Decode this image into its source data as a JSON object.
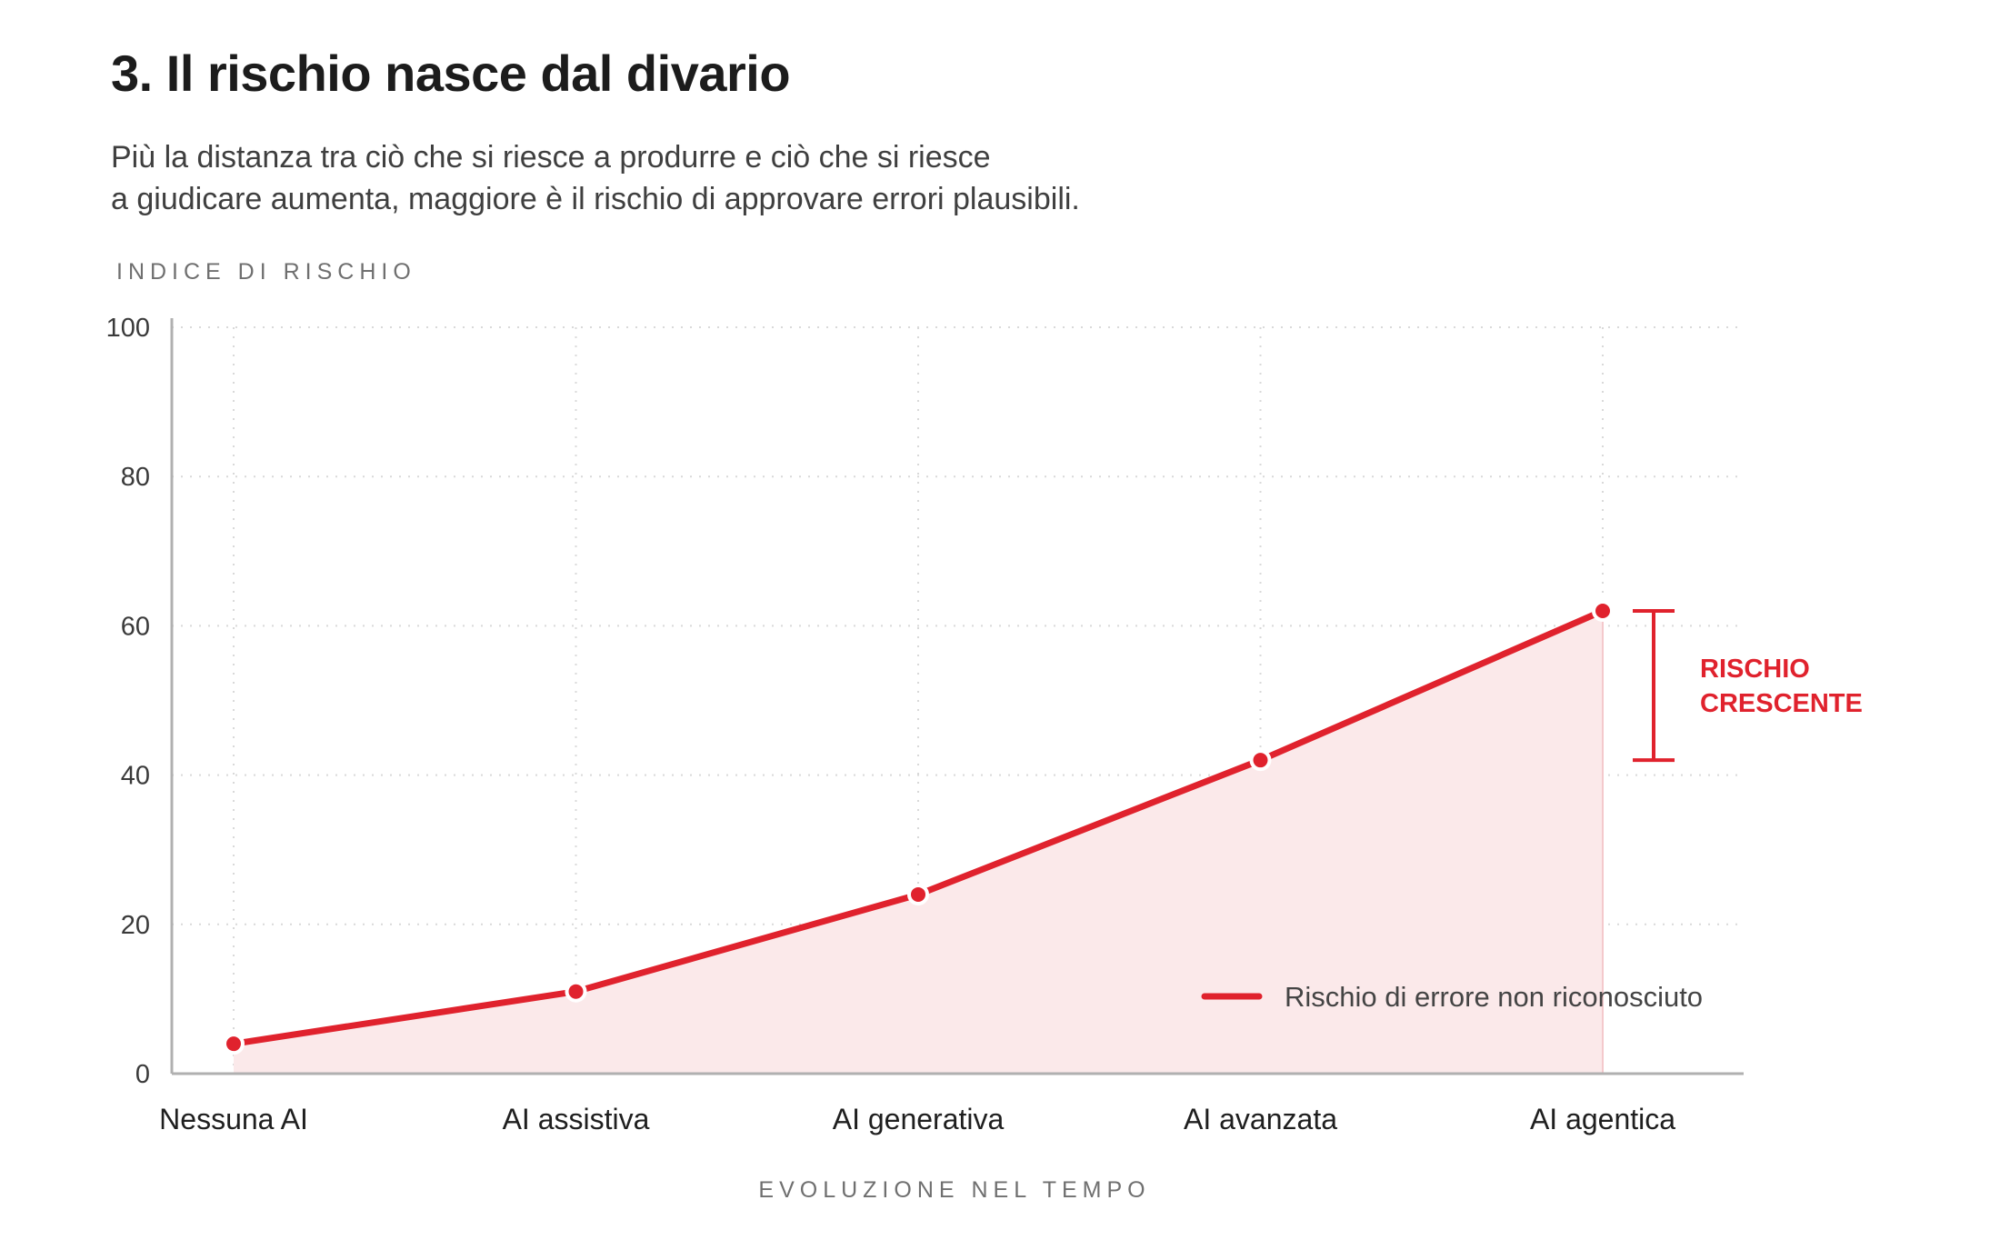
{
  "header": {
    "title": "3. Il rischio nasce dal divario",
    "subtitle_line1": "Più la distanza tra ciò che si riesce a produrre e ciò che si riesce",
    "subtitle_line2": "a giudicare aumenta, maggiore è il rischio di approvare errori plausibili."
  },
  "chart_data": {
    "type": "area",
    "ylabel": "INDICE DI RISCHIO",
    "xlabel": "EVOLUZIONE NEL TEMPO",
    "categories": [
      "Nessuna AI",
      "AI assistiva",
      "AI generativa",
      "AI avanzata",
      "AI agentica"
    ],
    "series": [
      {
        "name": "Rischio di errore non riconosciuto",
        "values": [
          4,
          11,
          24,
          42,
          62
        ]
      }
    ],
    "ylim": [
      0,
      100
    ],
    "yticks": [
      "0",
      "20",
      "40",
      "60",
      "80",
      "100"
    ],
    "grid": true,
    "legend_position": "bottom-right",
    "annotation": {
      "line1": "RISCHIO",
      "line2": "CRESCENTE",
      "range": [
        42,
        62
      ]
    },
    "colors": {
      "line": "#e0222d",
      "fill": "#fbe9ea",
      "grid": "#d9d9d9",
      "axis": "#b0b0b0"
    }
  }
}
